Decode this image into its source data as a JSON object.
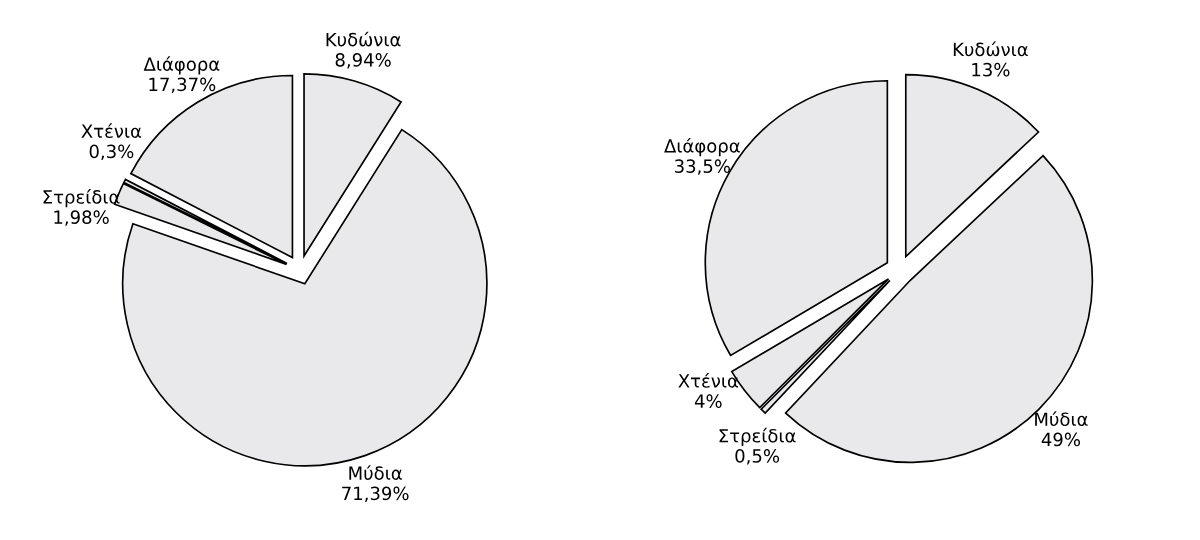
{
  "chart_data": [
    {
      "type": "pie",
      "categories": [
        "Κυδώνια",
        "Μύδια",
        "Στρείδια",
        "Χτένια",
        "Διάφορα"
      ],
      "values": [
        8.94,
        71.39,
        1.98,
        0.3,
        17.37
      ],
      "value_labels": [
        "8,94%",
        "71,39%",
        "1,98%",
        "0,3%",
        "17,37%"
      ],
      "colors": [
        "#e9e9eb",
        "#e9e9eb",
        "#e9e9eb",
        "#e9e9eb",
        "#e9e9eb"
      ]
    },
    {
      "type": "pie",
      "categories": [
        "Κυδώνια",
        "Μύδια",
        "Στρείδια",
        "Χτένια",
        "Διάφορα"
      ],
      "values": [
        13,
        49,
        0.5,
        4,
        33.5
      ],
      "value_labels": [
        "13%",
        "49%",
        "0,5%",
        "4%",
        "33,5%"
      ],
      "colors": [
        "#e9e9eb",
        "#e9e9eb",
        "#e9e9eb",
        "#e9e9eb",
        "#e9e9eb"
      ]
    }
  ]
}
